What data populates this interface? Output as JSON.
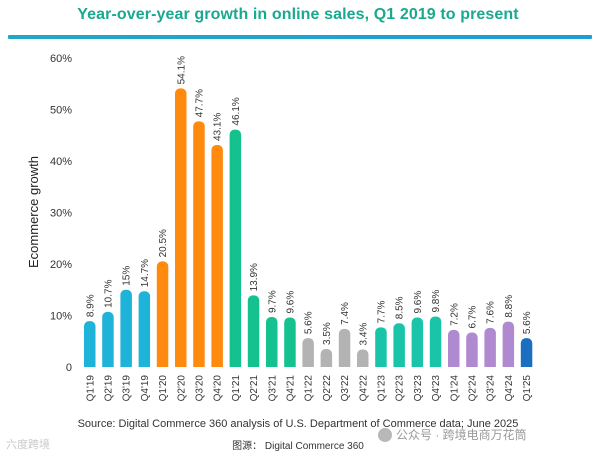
{
  "title": "Year-over-year growth in online sales, Q1 2019 to present",
  "source": "Source: Digital Commerce 360 analysis of U.S. Department of Commerce data; June 2025",
  "source_cn": "图源： Digital Commerce 360",
  "watermark_left": "六度跨境",
  "watermark_right": "公众号 · 跨境电商万花筒",
  "colors": {
    "title": "#19a98f",
    "rule": "#1fa6cc",
    "blue": "#1eb3d8",
    "orange": "#ff8a0d",
    "green": "#15c28f",
    "gray": "#b3b3b3",
    "teal": "#19c4a9",
    "purple": "#b08ad0",
    "darkblue": "#1a6fc0"
  },
  "chart_data": {
    "type": "bar",
    "ylabel": "Ecommerce growth",
    "xlabel": "",
    "ylim": [
      0,
      60
    ],
    "yticks": [
      "0",
      "10%",
      "20%",
      "30%",
      "40%",
      "50%",
      "60%"
    ],
    "grid": false,
    "categories": [
      "Q1'19",
      "Q2'19",
      "Q3'19",
      "Q4'19",
      "Q1'20",
      "Q2'20",
      "Q3'20",
      "Q4'20",
      "Q1'21",
      "Q2'21",
      "Q3'21",
      "Q4'21",
      "Q1'22",
      "Q2'22",
      "Q3'22",
      "Q4'22",
      "Q1'23",
      "Q2'23",
      "Q3'23",
      "Q4'23",
      "Q1'24",
      "Q2'24",
      "Q3'24",
      "Q4'24",
      "Q1'25"
    ],
    "values": [
      8.9,
      10.7,
      15,
      14.7,
      20.5,
      54.1,
      47.7,
      43.1,
      46.1,
      13.9,
      9.7,
      9.6,
      5.6,
      3.5,
      7.4,
      3.4,
      7.7,
      8.5,
      9.6,
      9.8,
      7.2,
      6.7,
      7.6,
      8.8,
      5.6
    ],
    "labels": [
      "8.9%",
      "10.7%",
      "15%",
      "14.7%",
      "20.5%",
      "54.1%",
      "47.7%",
      "43.1%",
      "46.1%",
      "13.9%",
      "9.7%",
      "9.6%",
      "5.6%",
      "3.5%",
      "7.4%",
      "3.4%",
      "7.7%",
      "8.5%",
      "9.6%",
      "9.8%",
      "7.2%",
      "6.7%",
      "7.6%",
      "8.8%",
      "5.6%"
    ],
    "bar_colors": [
      "blue",
      "blue",
      "blue",
      "blue",
      "orange",
      "orange",
      "orange",
      "orange",
      "green",
      "green",
      "green",
      "green",
      "gray",
      "gray",
      "gray",
      "gray",
      "teal",
      "teal",
      "teal",
      "teal",
      "purple",
      "purple",
      "purple",
      "purple",
      "darkblue"
    ]
  }
}
